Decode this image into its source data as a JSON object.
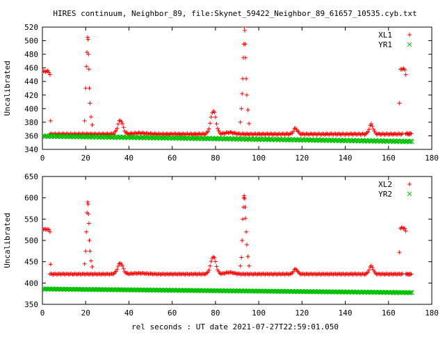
{
  "chart_data": [
    {
      "type": "scatter",
      "title": "HIRES continuum, Neighbor_89, file:Skynet_59422_Neighbor_89_61657_10535.cyb.txt",
      "xlabel": "",
      "ylabel": "Uncalibrated",
      "xlim": [
        0,
        180
      ],
      "ylim": [
        340,
        520
      ],
      "xticks": [
        0,
        20,
        40,
        60,
        80,
        100,
        120,
        140,
        160,
        180
      ],
      "yticks": [
        340,
        360,
        380,
        400,
        420,
        440,
        460,
        480,
        500,
        520
      ],
      "legend_position": "top-right",
      "series": [
        {
          "name": "XL1",
          "marker": "+",
          "color": "#ff0000",
          "baseline": {
            "x_start": 3.5,
            "x_end": 170,
            "base_y": 362.5,
            "step": 0.5,
            "slope": 0.0
          },
          "gaps": [
            [
              1.5,
              3.5
            ],
            [
              166.5,
              168
            ]
          ],
          "bumps": [
            {
              "x": 36,
              "y": 383,
              "width": 1.2
            },
            {
              "x": 79,
              "y": 397,
              "width": 1.2
            },
            {
              "x": 86.5,
              "y": 365,
              "width": 2.0
            },
            {
              "x": 117,
              "y": 371,
              "width": 0.9
            },
            {
              "x": 152,
              "y": 377,
              "width": 0.9
            },
            {
              "x": 45,
              "y": 364,
              "width": 3.0
            }
          ],
          "points": [
            [
              0,
              454
            ],
            [
              0.5,
              455
            ],
            [
              1,
              455
            ],
            [
              1.5,
              454
            ],
            [
              2,
              455
            ],
            [
              2.5,
              456
            ],
            [
              3,
              453
            ],
            [
              3.5,
              450
            ],
            [
              3.8,
              382
            ],
            [
              19.5,
              382
            ],
            [
              20,
              430
            ],
            [
              20.3,
              462
            ],
            [
              20.6,
              483
            ],
            [
              20.9,
              505
            ],
            [
              21.1,
              502
            ],
            [
              21.3,
              480
            ],
            [
              21.5,
              458
            ],
            [
              21.7,
              430
            ],
            [
              22,
              408
            ],
            [
              22.5,
              388
            ],
            [
              23,
              376
            ],
            [
              91.5,
              380
            ],
            [
              92,
              400
            ],
            [
              92.3,
              422
            ],
            [
              92.6,
              444
            ],
            [
              92.9,
              475
            ],
            [
              93.1,
              495
            ],
            [
              93.3,
              520
            ],
            [
              93.5,
              515
            ],
            [
              93.7,
              495
            ],
            [
              93.9,
              475
            ],
            [
              94.2,
              444
            ],
            [
              94.5,
              420
            ],
            [
              95,
              398
            ],
            [
              95.5,
              378
            ],
            [
              165,
              408
            ],
            [
              165.5,
              458
            ],
            [
              166,
              458
            ],
            [
              166.5,
              458
            ],
            [
              167,
              459
            ],
            [
              167.5,
              457
            ],
            [
              168,
              450
            ],
            [
              168.5,
              364
            ],
            [
              169,
              363
            ],
            [
              169.5,
              363
            ],
            [
              170,
              364
            ],
            [
              170.5,
              363
            ]
          ]
        },
        {
          "name": "YR1",
          "marker": "x",
          "color": "#00c000",
          "baseline": {
            "x_start": 0,
            "x_end": 171,
            "base_y": 359.5,
            "step": 0.4,
            "slope": -0.046
          },
          "gaps": [],
          "bumps": [],
          "points": []
        }
      ]
    },
    {
      "type": "scatter",
      "title": "",
      "xlabel": "rel seconds : UT date 2021-07-27T22:59:01.050",
      "ylabel": "Uncalibrated",
      "xlim": [
        0,
        180
      ],
      "ylim": [
        350,
        650
      ],
      "xticks": [
        0,
        20,
        40,
        60,
        80,
        100,
        120,
        140,
        160,
        180
      ],
      "yticks": [
        350,
        400,
        450,
        500,
        550,
        600,
        650
      ],
      "legend_position": "top-right",
      "series": [
        {
          "name": "XL2",
          "marker": "+",
          "color": "#ff0000",
          "baseline": {
            "x_start": 3.5,
            "x_end": 170,
            "base_y": 421,
            "step": 0.5,
            "slope": 0.0
          },
          "gaps": [
            [
              1.5,
              3.5
            ],
            [
              166.5,
              168
            ]
          ],
          "bumps": [
            {
              "x": 36,
              "y": 447,
              "width": 1.2
            },
            {
              "x": 79,
              "y": 462,
              "width": 1.2
            },
            {
              "x": 86.5,
              "y": 425,
              "width": 2.0
            },
            {
              "x": 117,
              "y": 433,
              "width": 0.9
            },
            {
              "x": 152,
              "y": 440,
              "width": 0.9
            },
            {
              "x": 45,
              "y": 423,
              "width": 3.0
            }
          ],
          "points": [
            [
              0,
              527
            ],
            [
              0.5,
              526
            ],
            [
              1,
              527
            ],
            [
              1.5,
              526
            ],
            [
              2,
              525
            ],
            [
              2.5,
              526
            ],
            [
              3,
              525
            ],
            [
              3.5,
              520
            ],
            [
              3.8,
              444
            ],
            [
              19.5,
              445
            ],
            [
              20,
              475
            ],
            [
              20.3,
              520
            ],
            [
              20.6,
              565
            ],
            [
              20.9,
              590
            ],
            [
              21.1,
              585
            ],
            [
              21.3,
              562
            ],
            [
              21.5,
              540
            ],
            [
              21.7,
              500
            ],
            [
              22,
              475
            ],
            [
              22.5,
              452
            ],
            [
              23,
              438
            ],
            [
              91.5,
              440
            ],
            [
              92,
              460
            ],
            [
              92.3,
              500
            ],
            [
              92.6,
              550
            ],
            [
              92.9,
              578
            ],
            [
              93.1,
              600
            ],
            [
              93.3,
              605
            ],
            [
              93.5,
              598
            ],
            [
              93.7,
              578
            ],
            [
              93.9,
              552
            ],
            [
              94.2,
              520
            ],
            [
              94.5,
              490
            ],
            [
              95,
              462
            ],
            [
              95.5,
              440
            ],
            [
              165,
              472
            ],
            [
              165.5,
              528
            ],
            [
              166,
              530
            ],
            [
              166.5,
              530
            ],
            [
              167,
              528
            ],
            [
              167.5,
              528
            ],
            [
              168,
              522
            ],
            [
              168.5,
              421
            ],
            [
              169,
              420
            ],
            [
              169.5,
              421
            ],
            [
              170,
              420
            ],
            [
              170.5,
              421
            ]
          ]
        },
        {
          "name": "YR2",
          "marker": "x",
          "color": "#00c000",
          "baseline": {
            "x_start": 0,
            "x_end": 171,
            "base_y": 386,
            "step": 0.4,
            "slope": -0.05
          },
          "gaps": [],
          "bumps": [],
          "points": []
        }
      ]
    }
  ]
}
